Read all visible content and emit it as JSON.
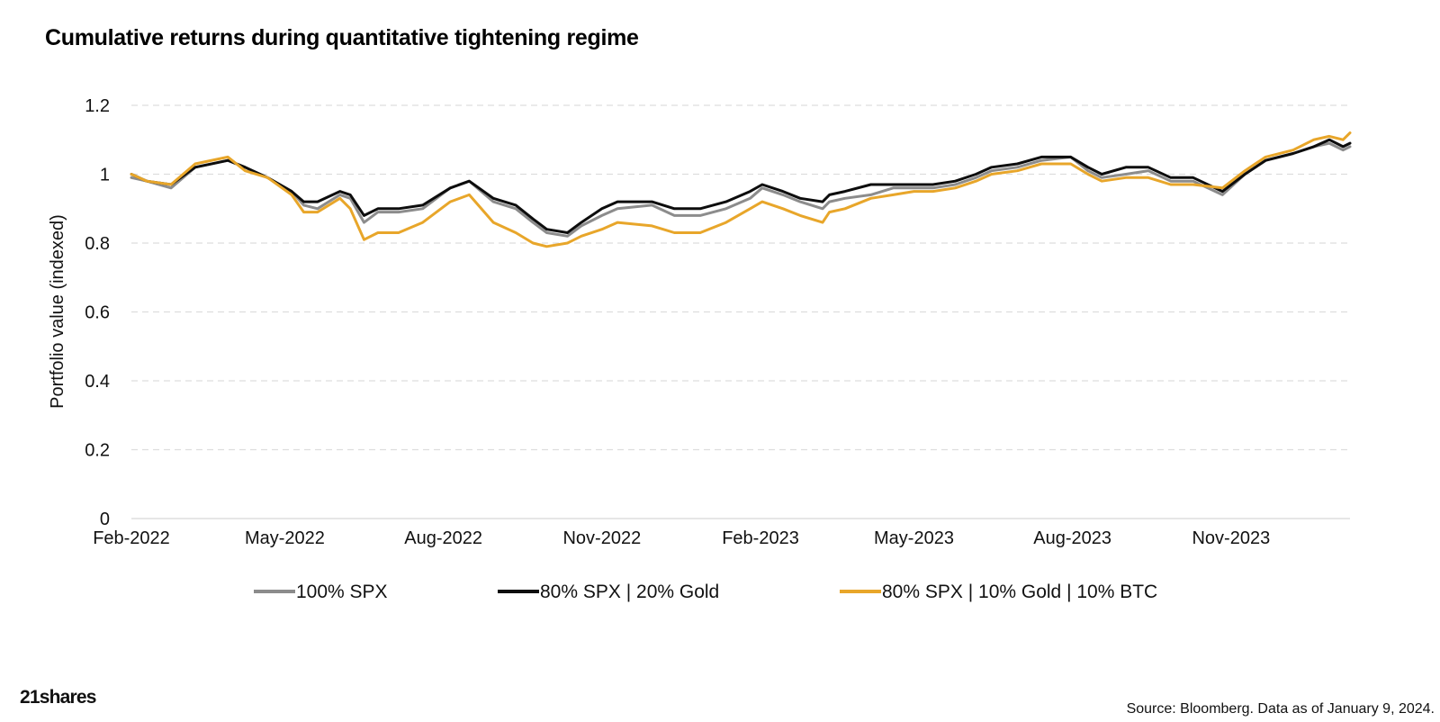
{
  "title": "Cumulative returns during quantitative tightening regime",
  "source": "Source: Bloomberg. Data as of January 9, 2024.",
  "logo": "21shares",
  "colors": {
    "spx": "#8c8c8c",
    "gold": "#0d0d0d",
    "btc": "#e8a62a",
    "grid": "#dddddd"
  },
  "chart_data": {
    "type": "line",
    "title": "Cumulative returns during quantitative tightening regime",
    "xlabel": "",
    "ylabel": "Portfolio value (indexed)",
    "ylim": [
      0,
      1.2
    ],
    "yticks": [
      0,
      0.2,
      0.4,
      0.6,
      0.8,
      1,
      1.2
    ],
    "ytick_labels": [
      "0",
      "0.2",
      "0.4",
      "0.6",
      "0.8",
      "1",
      "1.2"
    ],
    "xlim": [
      "2022-02-01",
      "2024-01-09"
    ],
    "xticks": [
      "2022-02-01",
      "2022-05-01",
      "2022-08-01",
      "2022-11-01",
      "2023-02-01",
      "2023-05-01",
      "2023-08-01",
      "2023-11-01"
    ],
    "xtick_labels": [
      "Feb-2022",
      "May-2022",
      "Aug-2022",
      "Nov-2022",
      "Feb-2023",
      "May-2023",
      "Aug-2023",
      "Nov-2023"
    ],
    "grid": "horizontal dashed",
    "legend_position": "bottom",
    "series": [
      {
        "name": "100% SPX",
        "color": "#8c8c8c",
        "x": [
          "2022-02-01",
          "2022-02-10",
          "2022-02-24",
          "2022-03-10",
          "2022-03-29",
          "2022-04-08",
          "2022-04-21",
          "2022-05-05",
          "2022-05-12",
          "2022-05-20",
          "2022-06-02",
          "2022-06-08",
          "2022-06-16",
          "2022-06-24",
          "2022-07-06",
          "2022-07-20",
          "2022-08-05",
          "2022-08-16",
          "2022-08-30",
          "2022-09-12",
          "2022-09-22",
          "2022-09-30",
          "2022-10-12",
          "2022-10-20",
          "2022-11-01",
          "2022-11-10",
          "2022-11-30",
          "2022-12-13",
          "2022-12-28",
          "2023-01-12",
          "2023-01-26",
          "2023-02-02",
          "2023-02-14",
          "2023-02-24",
          "2023-03-09",
          "2023-03-13",
          "2023-03-22",
          "2023-04-06",
          "2023-04-19",
          "2023-05-01",
          "2023-05-12",
          "2023-05-25",
          "2023-06-06",
          "2023-06-15",
          "2023-06-30",
          "2023-07-14",
          "2023-07-31",
          "2023-08-10",
          "2023-08-18",
          "2023-09-01",
          "2023-09-14",
          "2023-09-27",
          "2023-10-10",
          "2023-10-27",
          "2023-11-09",
          "2023-11-21",
          "2023-12-07",
          "2023-12-19",
          "2023-12-28",
          "2024-01-05",
          "2024-01-09"
        ],
        "values": [
          0.99,
          0.98,
          0.96,
          1.02,
          1.04,
          1.02,
          0.99,
          0.95,
          0.91,
          0.9,
          0.94,
          0.93,
          0.86,
          0.89,
          0.89,
          0.9,
          0.96,
          0.98,
          0.92,
          0.9,
          0.86,
          0.83,
          0.82,
          0.85,
          0.88,
          0.9,
          0.91,
          0.88,
          0.88,
          0.9,
          0.93,
          0.96,
          0.94,
          0.92,
          0.9,
          0.92,
          0.93,
          0.94,
          0.96,
          0.96,
          0.96,
          0.97,
          0.99,
          1.01,
          1.02,
          1.04,
          1.05,
          1.01,
          0.99,
          1.0,
          1.01,
          0.98,
          0.98,
          0.94,
          1.0,
          1.04,
          1.06,
          1.08,
          1.09,
          1.07,
          1.08
        ]
      },
      {
        "name": "80% SPX | 20% Gold",
        "color": "#0d0d0d",
        "x": [
          "2022-02-01",
          "2022-02-10",
          "2022-02-24",
          "2022-03-10",
          "2022-03-29",
          "2022-04-08",
          "2022-04-21",
          "2022-05-05",
          "2022-05-12",
          "2022-05-20",
          "2022-06-02",
          "2022-06-08",
          "2022-06-16",
          "2022-06-24",
          "2022-07-06",
          "2022-07-20",
          "2022-08-05",
          "2022-08-16",
          "2022-08-30",
          "2022-09-12",
          "2022-09-22",
          "2022-09-30",
          "2022-10-12",
          "2022-10-20",
          "2022-11-01",
          "2022-11-10",
          "2022-11-30",
          "2022-12-13",
          "2022-12-28",
          "2023-01-12",
          "2023-01-26",
          "2023-02-02",
          "2023-02-14",
          "2023-02-24",
          "2023-03-09",
          "2023-03-13",
          "2023-03-22",
          "2023-04-06",
          "2023-04-19",
          "2023-05-01",
          "2023-05-12",
          "2023-05-25",
          "2023-06-06",
          "2023-06-15",
          "2023-06-30",
          "2023-07-14",
          "2023-07-31",
          "2023-08-10",
          "2023-08-18",
          "2023-09-01",
          "2023-09-14",
          "2023-09-27",
          "2023-10-10",
          "2023-10-27",
          "2023-11-09",
          "2023-11-21",
          "2023-12-07",
          "2023-12-19",
          "2023-12-28",
          "2024-01-05",
          "2024-01-09"
        ],
        "values": [
          1.0,
          0.98,
          0.97,
          1.02,
          1.04,
          1.02,
          0.99,
          0.95,
          0.92,
          0.92,
          0.95,
          0.94,
          0.88,
          0.9,
          0.9,
          0.91,
          0.96,
          0.98,
          0.93,
          0.91,
          0.87,
          0.84,
          0.83,
          0.86,
          0.9,
          0.92,
          0.92,
          0.9,
          0.9,
          0.92,
          0.95,
          0.97,
          0.95,
          0.93,
          0.92,
          0.94,
          0.95,
          0.97,
          0.97,
          0.97,
          0.97,
          0.98,
          1.0,
          1.02,
          1.03,
          1.05,
          1.05,
          1.02,
          1.0,
          1.02,
          1.02,
          0.99,
          0.99,
          0.95,
          1.0,
          1.04,
          1.06,
          1.08,
          1.1,
          1.08,
          1.09
        ]
      },
      {
        "name": "80% SPX | 10% Gold | 10% BTC",
        "color": "#e8a62a",
        "x": [
          "2022-02-01",
          "2022-02-10",
          "2022-02-24",
          "2022-03-10",
          "2022-03-29",
          "2022-04-08",
          "2022-04-21",
          "2022-05-05",
          "2022-05-12",
          "2022-05-20",
          "2022-06-02",
          "2022-06-08",
          "2022-06-16",
          "2022-06-24",
          "2022-07-06",
          "2022-07-20",
          "2022-08-05",
          "2022-08-16",
          "2022-08-30",
          "2022-09-12",
          "2022-09-22",
          "2022-09-30",
          "2022-10-12",
          "2022-10-20",
          "2022-11-01",
          "2022-11-10",
          "2022-11-30",
          "2022-12-13",
          "2022-12-28",
          "2023-01-12",
          "2023-01-26",
          "2023-02-02",
          "2023-02-14",
          "2023-02-24",
          "2023-03-09",
          "2023-03-13",
          "2023-03-22",
          "2023-04-06",
          "2023-04-19",
          "2023-05-01",
          "2023-05-12",
          "2023-05-25",
          "2023-06-06",
          "2023-06-15",
          "2023-06-30",
          "2023-07-14",
          "2023-07-31",
          "2023-08-10",
          "2023-08-18",
          "2023-09-01",
          "2023-09-14",
          "2023-09-27",
          "2023-10-10",
          "2023-10-27",
          "2023-11-09",
          "2023-11-21",
          "2023-12-07",
          "2023-12-19",
          "2023-12-28",
          "2024-01-05",
          "2024-01-09"
        ],
        "values": [
          1.0,
          0.98,
          0.97,
          1.03,
          1.05,
          1.01,
          0.99,
          0.94,
          0.89,
          0.89,
          0.93,
          0.9,
          0.81,
          0.83,
          0.83,
          0.86,
          0.92,
          0.94,
          0.86,
          0.83,
          0.8,
          0.79,
          0.8,
          0.82,
          0.84,
          0.86,
          0.85,
          0.83,
          0.83,
          0.86,
          0.9,
          0.92,
          0.9,
          0.88,
          0.86,
          0.89,
          0.9,
          0.93,
          0.94,
          0.95,
          0.95,
          0.96,
          0.98,
          1.0,
          1.01,
          1.03,
          1.03,
          1.0,
          0.98,
          0.99,
          0.99,
          0.97,
          0.97,
          0.96,
          1.01,
          1.05,
          1.07,
          1.1,
          1.11,
          1.1,
          1.12
        ]
      }
    ]
  }
}
